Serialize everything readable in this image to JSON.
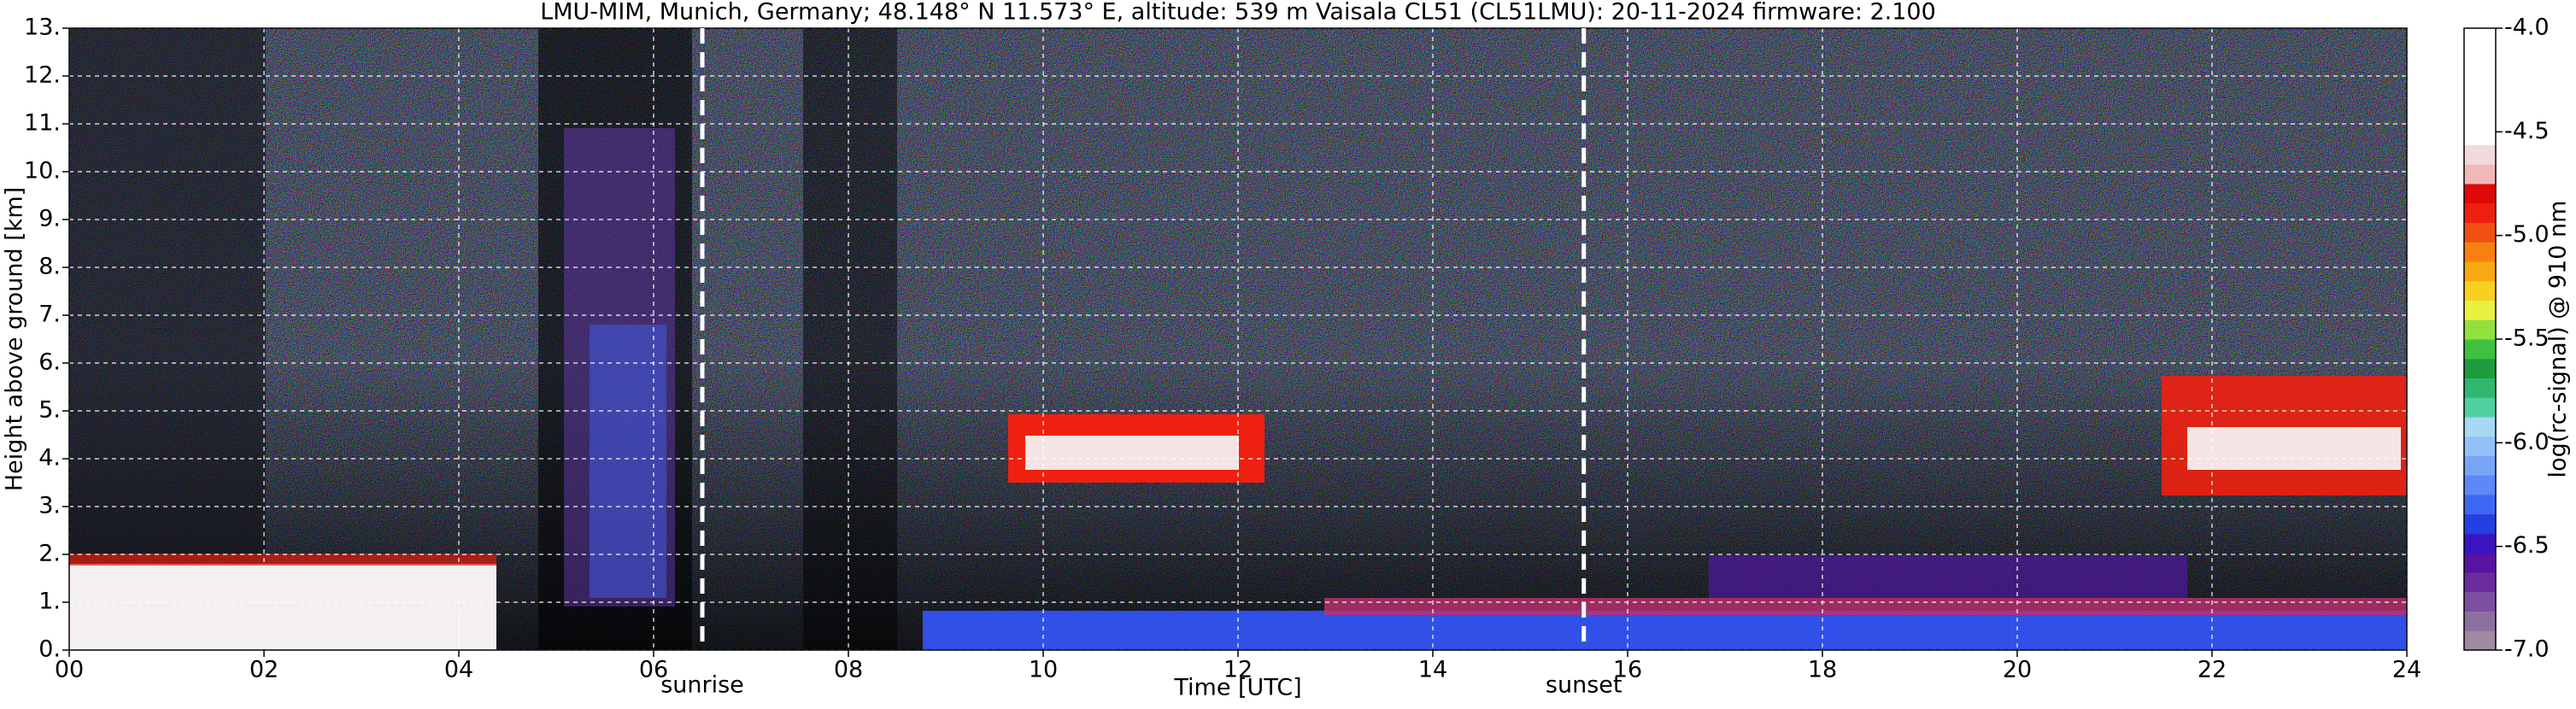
{
  "chart_data": {
    "type": "lidar",
    "title": "LMU-MIM, Munich, Germany; 48.148° N 11.573° E, altitude: 539 m    Vaisala CL51 (CL51LMU): 20-11-2024    firmware: 2.100",
    "xlabel": "Time [UTC]",
    "ylabel": "Height above ground [km]",
    "xlim": [
      0,
      24
    ],
    "xticks": [
      {
        "value": 0,
        "label": "00"
      },
      {
        "value": 2,
        "label": "02"
      },
      {
        "value": 4,
        "label": "04"
      },
      {
        "value": 6,
        "label": "06"
      },
      {
        "value": 8,
        "label": "08"
      },
      {
        "value": 10,
        "label": "10"
      },
      {
        "value": 12,
        "label": "12"
      },
      {
        "value": 14,
        "label": "14"
      },
      {
        "value": 16,
        "label": "16"
      },
      {
        "value": 18,
        "label": "18"
      },
      {
        "value": 20,
        "label": "20"
      },
      {
        "value": 22,
        "label": "22"
      },
      {
        "value": 24,
        "label": "24"
      }
    ],
    "ylim": [
      0,
      13
    ],
    "yticks": [
      {
        "value": 0,
        "label": "0."
      },
      {
        "value": 1,
        "label": "1."
      },
      {
        "value": 2,
        "label": "2."
      },
      {
        "value": 3,
        "label": "3."
      },
      {
        "value": 4,
        "label": "4."
      },
      {
        "value": 5,
        "label": "5."
      },
      {
        "value": 6,
        "label": "6."
      },
      {
        "value": 7,
        "label": "7."
      },
      {
        "value": 8,
        "label": "8."
      },
      {
        "value": 9,
        "label": "9."
      },
      {
        "value": 10,
        "label": "10."
      },
      {
        "value": 11,
        "label": "11."
      },
      {
        "value": 12,
        "label": "12."
      },
      {
        "value": 13,
        "label": "13."
      }
    ],
    "grid": true,
    "annotations": [
      {
        "label": "sunrise",
        "x": 6.5
      },
      {
        "label": "sunset",
        "x": 15.55
      }
    ],
    "colorbar": {
      "label": "log(rc-signal) @ 910 nm",
      "lim": [
        -7,
        -4
      ],
      "ticks": [
        {
          "value": -7,
          "label": "-7.0"
        },
        {
          "value": -6.5,
          "label": "-6.5"
        },
        {
          "value": -6,
          "label": "-6.0"
        },
        {
          "value": -5.5,
          "label": "-5.5"
        },
        {
          "value": -5,
          "label": "-5.0"
        },
        {
          "value": -4.5,
          "label": "-4.5"
        },
        {
          "value": -4,
          "label": "-4.0"
        }
      ],
      "colors": [
        "#a08aa0",
        "#8e70a0",
        "#7c50a0",
        "#6a2c9c",
        "#5812a4",
        "#3a14c0",
        "#2440e0",
        "#3c66f4",
        "#5c88f8",
        "#78a4f8",
        "#94c0f8",
        "#a8d8f4",
        "#50d0a0",
        "#30b870",
        "#1c9c3c",
        "#40c040",
        "#90e040",
        "#e8f040",
        "#f8d020",
        "#f8a810",
        "#f88010",
        "#f05010",
        "#f02010",
        "#e00808",
        "#f0b8b8",
        "#f0dada",
        "#ffffff",
        "#ffffff",
        "#ffffff",
        "#ffffff",
        "#ffffff",
        "#ffffff"
      ]
    }
  }
}
